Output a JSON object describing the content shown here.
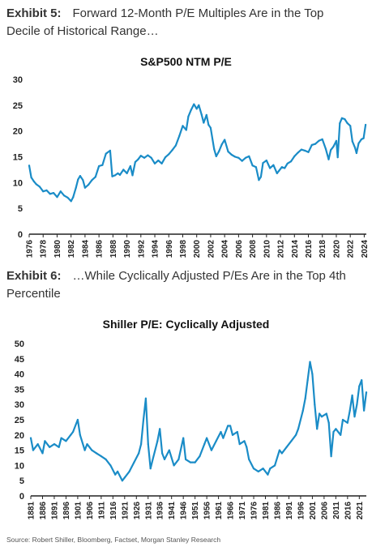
{
  "exhibit5": {
    "num": "Exhibit 5:",
    "line1": "Forward 12-Month P/E Multiples Are in the Top",
    "line2": "Decile of Historical Range…"
  },
  "exhibit6": {
    "num": "Exhibit 6:",
    "line1": "…While Cyclically Adjusted P/Es Are in the Top 4th",
    "line2": "Percentile"
  },
  "source": "Source: Robert Shiller, Bloomberg, Factset, Morgan Stanley Research",
  "style": {
    "line_color": "#1a8cc7",
    "axis_color": "#222222"
  },
  "chart_data": [
    {
      "type": "line",
      "title": "S&P500 NTM P/E",
      "xlabel": "",
      "ylabel": "",
      "xlim": [
        1976,
        2024.3
      ],
      "ylim": [
        0,
        30
      ],
      "yticks": [
        "0",
        "5",
        "10",
        "15",
        "20",
        "25",
        "30"
      ],
      "xticks": [
        "1976",
        "1978",
        "1980",
        "1982",
        "1984",
        "1986",
        "1988",
        "1990",
        "1992",
        "1994",
        "1996",
        "1998",
        "2000",
        "2002",
        "2004",
        "2006",
        "2008",
        "2010",
        "2012",
        "2014",
        "2016",
        "2018",
        "2020",
        "2022",
        "2024"
      ],
      "grid": false,
      "x": [
        1976.0,
        1976.3,
        1976.7,
        1977.0,
        1977.5,
        1978.0,
        1978.5,
        1979.0,
        1979.5,
        1980.0,
        1980.5,
        1981.0,
        1981.5,
        1982.0,
        1982.3,
        1982.7,
        1983.0,
        1983.3,
        1983.7,
        1984.0,
        1984.5,
        1985.0,
        1985.5,
        1986.0,
        1986.5,
        1987.0,
        1987.6,
        1987.9,
        1988.3,
        1988.7,
        1989.0,
        1989.5,
        1990.0,
        1990.5,
        1990.8,
        1991.2,
        1991.6,
        1992.0,
        1992.5,
        1993.0,
        1993.5,
        1994.0,
        1994.5,
        1995.0,
        1995.5,
        1996.0,
        1996.5,
        1997.0,
        1997.5,
        1998.0,
        1998.5,
        1998.8,
        1999.2,
        1999.6,
        2000.0,
        2000.3,
        2000.7,
        2001.0,
        2001.4,
        2001.7,
        2002.0,
        2002.5,
        2002.8,
        2003.2,
        2003.6,
        2004.0,
        2004.5,
        2005.0,
        2005.5,
        2006.0,
        2006.5,
        2007.0,
        2007.5,
        2008.0,
        2008.5,
        2008.9,
        2009.2,
        2009.5,
        2010.0,
        2010.5,
        2011.0,
        2011.5,
        2011.8,
        2012.2,
        2012.6,
        2013.0,
        2013.5,
        2014.0,
        2014.5,
        2015.0,
        2015.5,
        2016.0,
        2016.5,
        2017.0,
        2017.5,
        2018.0,
        2018.5,
        2018.9,
        2019.2,
        2019.6,
        2020.0,
        2020.2,
        2020.5,
        2020.8,
        2021.2,
        2021.6,
        2022.0,
        2022.3,
        2022.7,
        2022.9,
        2023.2,
        2023.6,
        2023.9,
        2024.2
      ],
      "values": [
        13.3,
        11.0,
        10.2,
        9.7,
        9.2,
        8.3,
        8.5,
        7.8,
        8.0,
        7.2,
        8.3,
        7.5,
        7.1,
        6.4,
        7.2,
        9.0,
        10.6,
        11.3,
        10.5,
        9.0,
        9.6,
        10.5,
        11.1,
        13.2,
        13.4,
        15.6,
        16.2,
        11.2,
        11.4,
        11.8,
        11.5,
        12.5,
        11.8,
        13.2,
        11.4,
        14.0,
        14.5,
        15.2,
        14.8,
        15.3,
        14.8,
        13.7,
        14.3,
        13.7,
        14.9,
        15.5,
        16.3,
        17.2,
        19.0,
        21.0,
        20.2,
        22.8,
        24.1,
        25.2,
        24.3,
        25.0,
        23.2,
        21.6,
        23.1,
        21.2,
        20.6,
        16.5,
        15.1,
        16.1,
        17.4,
        18.3,
        16.0,
        15.4,
        15.0,
        14.8,
        14.2,
        14.8,
        15.1,
        13.3,
        13.0,
        10.5,
        11.1,
        13.8,
        14.3,
        12.8,
        13.4,
        11.8,
        12.3,
        13.0,
        12.8,
        13.7,
        14.1,
        15.1,
        15.8,
        16.4,
        16.2,
        15.9,
        17.3,
        17.5,
        18.1,
        18.4,
        16.5,
        14.5,
        16.3,
        17.0,
        18.1,
        14.9,
        21.5,
        22.5,
        22.3,
        21.5,
        21.0,
        18.0,
        16.7,
        15.7,
        17.6,
        18.4,
        18.6,
        21.2
      ]
    },
    {
      "type": "line",
      "title": "Shiller P/E: Cyclically Adjusted",
      "xlabel": "",
      "ylabel": "",
      "xlim": [
        1881,
        2024
      ],
      "ylim": [
        0,
        50
      ],
      "yticks": [
        "0",
        "5",
        "10",
        "15",
        "20",
        "25",
        "30",
        "35",
        "40",
        "45",
        "50"
      ],
      "xticks": [
        "1881",
        "1886",
        "1891",
        "1896",
        "1901",
        "1906",
        "1911",
        "1916",
        "1921",
        "1926",
        "1931",
        "1936",
        "1941",
        "1946",
        "1951",
        "1956",
        "1961",
        "1966",
        "1971",
        "1976",
        "1981",
        "1986",
        "1991",
        "1996",
        "2001",
        "2006",
        "2011",
        "2016",
        "2021"
      ],
      "grid": false,
      "x": [
        1881,
        1882,
        1884,
        1886,
        1887,
        1889,
        1891,
        1893,
        1894,
        1896,
        1898,
        1899,
        1901,
        1902,
        1904,
        1905,
        1907,
        1909,
        1911,
        1913,
        1915,
        1917,
        1918,
        1920,
        1921,
        1923,
        1925,
        1927,
        1928,
        1929,
        1930,
        1931,
        1932,
        1933,
        1935,
        1936,
        1937,
        1938,
        1940,
        1942,
        1944,
        1946,
        1947,
        1949,
        1951,
        1953,
        1955,
        1956,
        1958,
        1960,
        1962,
        1963,
        1965,
        1966,
        1967,
        1969,
        1970,
        1972,
        1973,
        1974,
        1976,
        1978,
        1980,
        1982,
        1983,
        1985,
        1987,
        1988,
        1990,
        1992,
        1994,
        1995,
        1997,
        1998,
        1999,
        2000,
        2001,
        2002,
        2003,
        2004,
        2005,
        2007,
        2008,
        2009,
        2010,
        2011,
        2013,
        2014,
        2016,
        2017,
        2018,
        2019,
        2020,
        2021,
        2022,
        2023,
        2024
      ],
      "values": [
        19,
        15,
        17,
        14,
        18,
        16,
        17,
        16,
        19,
        18,
        20,
        21,
        25,
        20,
        15,
        17,
        15,
        14,
        13,
        12,
        10,
        7,
        8,
        5,
        6,
        8,
        11,
        14,
        17,
        25,
        32,
        17,
        9,
        12,
        18,
        22,
        14,
        12,
        15,
        10,
        12,
        19,
        12,
        11,
        11,
        13,
        17,
        19,
        15,
        18,
        21,
        19,
        23,
        23,
        20,
        21,
        17,
        18,
        16,
        12,
        9,
        8,
        9,
        7,
        9,
        10,
        15,
        14,
        16,
        18,
        20,
        22,
        28,
        32,
        38,
        44,
        40,
        30,
        22,
        27,
        26,
        27,
        24,
        13,
        21,
        22,
        20,
        25,
        24,
        28,
        33,
        26,
        30,
        36,
        38,
        28,
        34
      ]
    }
  ]
}
